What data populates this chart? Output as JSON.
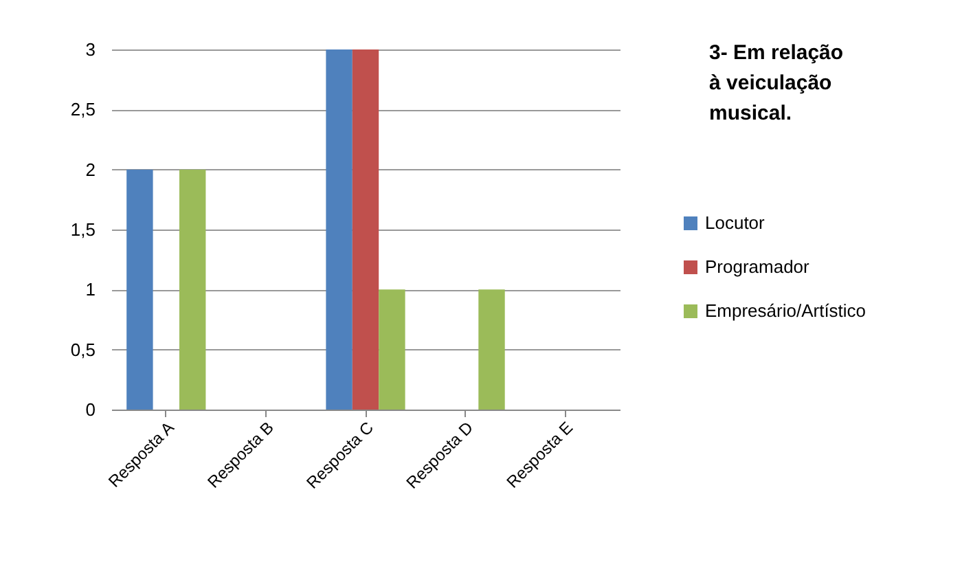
{
  "chart_data": {
    "type": "bar",
    "title": "3- Em relação à veiculação musical.",
    "categories": [
      "Resposta A",
      "Resposta B",
      "Resposta C",
      "Resposta D",
      "Resposta E"
    ],
    "series": [
      {
        "name": "Locutor",
        "color": "#4f81bd",
        "values": [
          2,
          0,
          3,
          0,
          0
        ]
      },
      {
        "name": "Programador",
        "color": "#c0504d",
        "values": [
          0,
          0,
          3,
          0,
          0
        ]
      },
      {
        "name": "Empresário/Artístico",
        "color": "#9bbb59",
        "values": [
          2,
          0,
          1,
          1,
          0
        ]
      }
    ],
    "ylim": [
      0,
      3
    ],
    "yticks": [
      0,
      {
        "value": 0.5,
        "label": "0,5"
      },
      1,
      {
        "value": 1.5,
        "label": "1,5"
      },
      2,
      {
        "value": 2.5,
        "label": "2,5"
      },
      3
    ],
    "grid": "y",
    "legend": "right"
  }
}
